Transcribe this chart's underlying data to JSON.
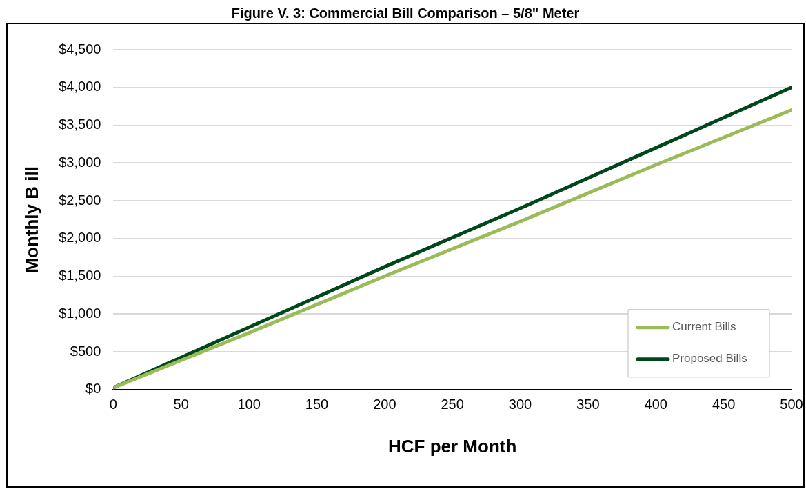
{
  "chart_data": {
    "type": "line",
    "title": "Figure V. 3: Commercial Bill Comparison – 5/8\" Meter",
    "xlabel": "HCF per Month",
    "ylabel": "Monthly B ill",
    "x": [
      0,
      100,
      200,
      300,
      400,
      500
    ],
    "series": [
      {
        "name": "Current Bills",
        "color": "#9bbb59",
        "values": [
          25,
          750,
          1500,
          2225,
          2975,
          3700
        ]
      },
      {
        "name": "Proposed Bills",
        "color": "#00471b",
        "values": [
          25,
          825,
          1625,
          2400,
          3200,
          4000
        ]
      }
    ],
    "xlim": [
      0,
      500
    ],
    "xticks": [
      0,
      50,
      100,
      150,
      200,
      250,
      300,
      350,
      400,
      450,
      500
    ],
    "ylim": [
      0,
      4500
    ],
    "yticks": [
      {
        "value": 0,
        "label": "$0"
      },
      {
        "value": 500,
        "label": "$500"
      },
      {
        "value": 1000,
        "label": "$1,000"
      },
      {
        "value": 1500,
        "label": "$1,500"
      },
      {
        "value": 2000,
        "label": "$2,000"
      },
      {
        "value": 2500,
        "label": "$2,500"
      },
      {
        "value": 3000,
        "label": "$3,000"
      },
      {
        "value": 3500,
        "label": "$3,500"
      },
      {
        "value": 4000,
        "label": "$4,000"
      },
      {
        "value": 4500,
        "label": "$4,500"
      }
    ],
    "grid": "y",
    "legend": "bottom right",
    "marker": "none",
    "line_style": "solid"
  }
}
